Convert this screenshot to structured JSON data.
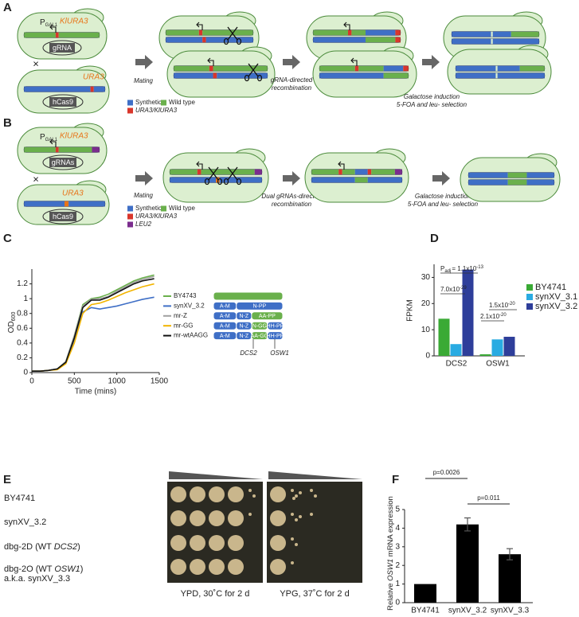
{
  "panel_labels": [
    "A",
    "B",
    "C",
    "D",
    "E",
    "F"
  ],
  "panel_a": {
    "promoter": "P",
    "promoter_sub": "GAL1",
    "donor_gene": "KlURA3",
    "guide": "gRNA",
    "target_gene": "URA3",
    "cas9": "hCas9",
    "cross": "×",
    "steps": [
      "Mating",
      "gRNA-directed",
      "recombination",
      "Galactose induction",
      "5-FOA and leu- selection"
    ],
    "legend": [
      "Synthetic",
      "Wild type",
      "URA3/KlURA3"
    ]
  },
  "panel_b": {
    "promoter": "P",
    "promoter_sub": "GAL1",
    "donor_gene": "KlURA3",
    "guide": "gRNAs",
    "target_gene": "URA3",
    "cas9": "hCas9",
    "cross": "×",
    "steps": [
      "Mating",
      "Dual gRNAs-directed",
      "recombination",
      "Galactose induction",
      "5-FOA and leu- selection"
    ],
    "legend": [
      "Synthetic",
      "Wild type",
      "URA3/KlURA3",
      "LEU2"
    ]
  },
  "chart_data": [
    {
      "type": "line",
      "ylabel": "OD",
      "ylabel_sub": "600",
      "xlabel": "Time (mins)",
      "x": [
        0,
        100,
        200,
        300,
        400,
        500,
        600,
        700,
        800,
        900,
        1000,
        1100,
        1200,
        1300,
        1440
      ],
      "series": [
        {
          "name": "BY4743",
          "color": "#6ab04c",
          "values": [
            0.02,
            0.02,
            0.03,
            0.05,
            0.15,
            0.5,
            0.92,
            1.0,
            1.02,
            1.06,
            1.12,
            1.18,
            1.24,
            1.28,
            1.32
          ]
        },
        {
          "name": "synXV_3.2",
          "color": "#3f6fc6",
          "values": [
            0.02,
            0.02,
            0.03,
            0.05,
            0.14,
            0.45,
            0.82,
            0.88,
            0.86,
            0.88,
            0.9,
            0.93,
            0.96,
            0.99,
            1.02
          ]
        },
        {
          "name": "mr-Z",
          "color": "#a0a0a0",
          "values": [
            0.02,
            0.02,
            0.03,
            0.05,
            0.15,
            0.5,
            0.9,
            0.99,
            1.0,
            1.03,
            1.1,
            1.16,
            1.22,
            1.26,
            1.3
          ]
        },
        {
          "name": "mr-GG",
          "color": "#f2b400",
          "values": [
            0.02,
            0.02,
            0.03,
            0.04,
            0.12,
            0.4,
            0.8,
            0.92,
            0.94,
            0.98,
            1.03,
            1.08,
            1.12,
            1.16,
            1.2
          ]
        },
        {
          "name": "mr-wtAAGG",
          "color": "#111111",
          "values": [
            0.02,
            0.02,
            0.03,
            0.05,
            0.14,
            0.47,
            0.88,
            0.98,
            0.98,
            1.02,
            1.08,
            1.14,
            1.2,
            1.24,
            1.27
          ]
        }
      ],
      "xlim": [
        0,
        1500
      ],
      "xticks": [
        0,
        500,
        1000,
        1500
      ],
      "ylim": [
        0,
        1.4
      ],
      "yticks": [
        0,
        0.2,
        0.4,
        0.6,
        0.8,
        1,
        1.2
      ],
      "schematic": [
        [
          {
            "color": "#6ab04c"
          }
        ],
        [
          {
            "label": "A-M",
            "color": "#3f6fc6"
          },
          {
            "label": "N-PP",
            "color": "#3f6fc6"
          }
        ],
        [
          {
            "label": "A-M",
            "color": "#3f6fc6"
          },
          {
            "label": "N-Z",
            "color": "#3f6fc6"
          },
          {
            "label": "AA-PP",
            "color": "#6ab04c"
          }
        ],
        [
          {
            "label": "A-M",
            "color": "#3f6fc6"
          },
          {
            "label": "N-Z",
            "color": "#3f6fc6"
          },
          {
            "label": "N-GG",
            "color": "#6ab04c"
          },
          {
            "label": "HH-PP",
            "color": "#3f6fc6"
          }
        ],
        [
          {
            "label": "A-M",
            "color": "#3f6fc6"
          },
          {
            "label": "N-Z",
            "color": "#3f6fc6"
          },
          {
            "label": "AA-GG",
            "color": "#6ab04c"
          },
          {
            "label": "HH-PP",
            "color": "#3f6fc6"
          }
        ]
      ],
      "loci": [
        "DCS2",
        "OSW1"
      ]
    },
    {
      "type": "bar",
      "ylabel": "FPKM",
      "categories": [
        "DCS2",
        "OSW1"
      ],
      "series": [
        {
          "name": "BY4741",
          "color": "#3aaa35",
          "values": [
            14.2,
            0.6
          ]
        },
        {
          "name": "synXV_3.1",
          "color": "#29abe2",
          "values": [
            4.5,
            6.3
          ]
        },
        {
          "name": "synXV_3.2",
          "color": "#2e3e9a",
          "values": [
            33,
            7.3
          ]
        }
      ],
      "ylim": [
        0,
        35
      ],
      "yticks": [
        0,
        10,
        20,
        30
      ],
      "annotations": [
        {
          "pre": "P",
          "pre_sub": "adj",
          "base": "= 1.1x10",
          "sup": "-13"
        },
        {
          "base": "7.0x10",
          "sup": "-29"
        },
        {
          "base": "1.5x10",
          "sup": "-20"
        },
        {
          "base": "2.1x10",
          "sup": "-20"
        }
      ]
    },
    {
      "type": "bar",
      "ylabel": [
        "Relative ",
        "OSW1",
        " mRNA expression"
      ],
      "categories": [
        "BY4741",
        "synXV_3.2",
        "synXV_3.3"
      ],
      "values": [
        1,
        4.2,
        2.6
      ],
      "errors": [
        null,
        0.35,
        0.3
      ],
      "color": "#000000",
      "ylim": [
        0,
        5
      ],
      "yticks": [
        0,
        1,
        2,
        3,
        4,
        5
      ],
      "annotations": [
        "p=0.0026",
        "p=0.011"
      ]
    }
  ],
  "panel_e": {
    "strains": [
      {
        "text": "BY4741"
      },
      {
        "text": "synXV_3.2"
      },
      {
        "text": "dbg-2D (WT ",
        "italic": "DCS2",
        "end": ")"
      },
      {
        "text": "dbg-2O (WT ",
        "italic": "OSW1",
        "end": ")"
      },
      {
        "text": "a.k.a. synXV_3.3"
      }
    ],
    "conditions": [
      "YPD, 30˚C for 2 d",
      "YPG, 37˚C for 2 d"
    ]
  }
}
